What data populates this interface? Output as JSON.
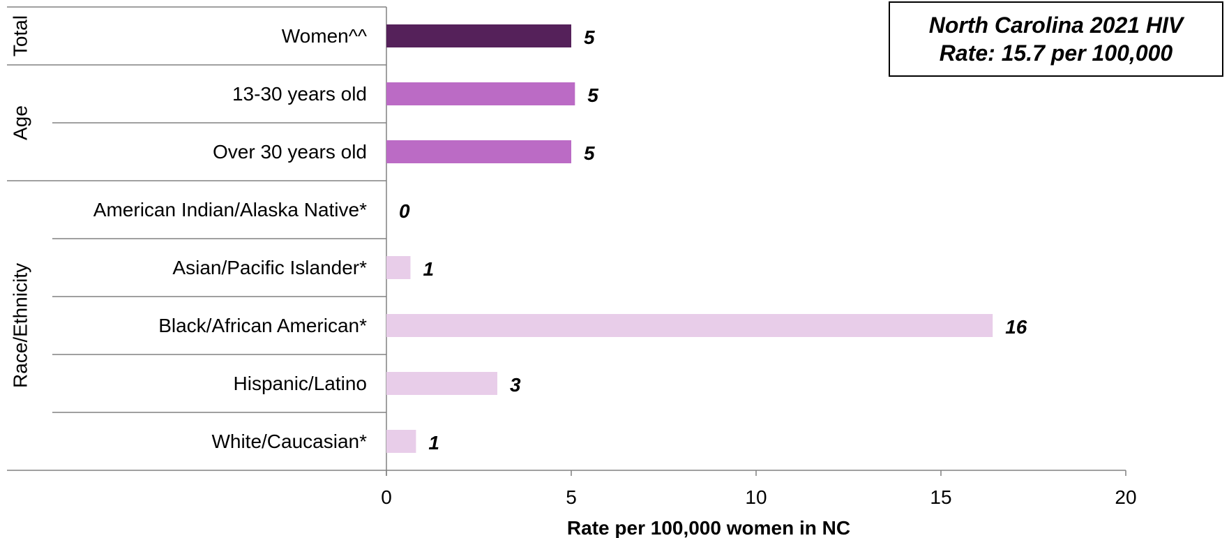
{
  "annotation": {
    "line1": "North Carolina 2021 HIV",
    "line2": "Rate: 15.7 per 100,000"
  },
  "chart_data": {
    "type": "bar",
    "orientation": "horizontal",
    "xlabel": "Rate per 100,000 women in NC",
    "xlim": [
      0,
      20
    ],
    "xticks": [
      0,
      5,
      10,
      15,
      20
    ],
    "grid": false,
    "groups": [
      {
        "name": "Total",
        "categories": [
          "Women^^"
        ]
      },
      {
        "name": "Age",
        "categories": [
          "13-30 years old",
          "Over 30 years old"
        ]
      },
      {
        "name": "Race/Ethnicity",
        "categories": [
          "American Indian/Alaska Native*",
          "Asian/Pacific Islander*",
          "Black/African American*",
          "Hispanic/Latino",
          "White/Caucasian*"
        ]
      }
    ],
    "categories": [
      "Women^^",
      "13-30 years old",
      "Over 30 years old",
      "American Indian/Alaska Native*",
      "Asian/Pacific Islander*",
      "Black/African American*",
      "Hispanic/Latino",
      "White/Caucasian*"
    ],
    "values": [
      5,
      5.1,
      5,
      0,
      0.65,
      16.4,
      3,
      0.8
    ],
    "data_labels": [
      "5",
      "5",
      "5",
      "0",
      "1",
      "16",
      "3",
      "1"
    ],
    "colors": [
      "#55215a",
      "#bb6bc5",
      "#bb6bc5",
      "#e8cde9",
      "#e8cde9",
      "#e8cde9",
      "#e8cde9",
      "#e8cde9"
    ]
  }
}
